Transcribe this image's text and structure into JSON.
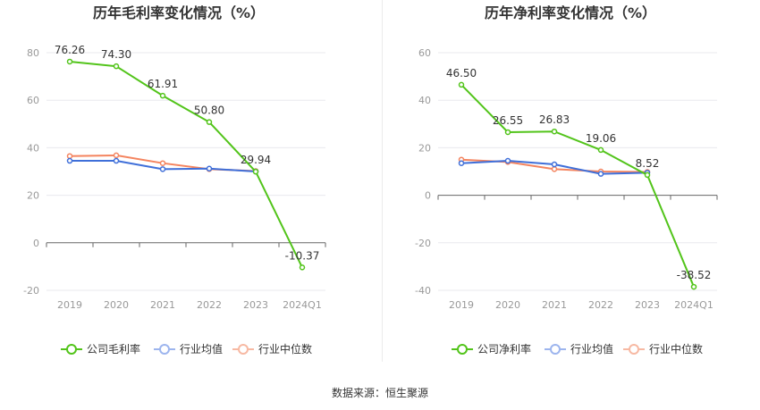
{
  "source_label": "数据来源：恒生聚源",
  "chart_data": [
    {
      "type": "line",
      "title": "历年毛利率变化情况（%）",
      "categories": [
        "2019",
        "2020",
        "2021",
        "2022",
        "2023",
        "2024Q1"
      ],
      "ylim": [
        -20,
        80
      ],
      "yticks": [
        -20,
        0,
        20,
        40,
        60,
        80
      ],
      "grid": true,
      "legend_position": "bottom",
      "label_series": 0,
      "series": [
        {
          "name": "公司毛利率",
          "color": "#52c41a",
          "values": [
            76.26,
            74.3,
            61.91,
            50.8,
            29.94,
            -10.37
          ],
          "labels": [
            "76.26",
            "74.30",
            "61.91",
            "50.80",
            "29.94",
            "-10.37"
          ]
        },
        {
          "name": "行业均值",
          "color": "#3f6fd9",
          "values": [
            34.5,
            34.5,
            31.0,
            31.2,
            30.0,
            null
          ]
        },
        {
          "name": "行业中位数",
          "color": "#f4845f",
          "values": [
            36.5,
            36.8,
            33.5,
            31.0,
            30.2,
            null
          ]
        }
      ]
    },
    {
      "type": "line",
      "title": "历年净利率变化情况（%）",
      "categories": [
        "2019",
        "2020",
        "2021",
        "2022",
        "2023",
        "2024Q1"
      ],
      "ylim": [
        -40,
        60
      ],
      "yticks": [
        -40,
        -20,
        0,
        20,
        40,
        60
      ],
      "grid": true,
      "legend_position": "bottom",
      "label_series": 0,
      "series": [
        {
          "name": "公司净利率",
          "color": "#52c41a",
          "values": [
            46.5,
            26.55,
            26.83,
            19.06,
            8.52,
            -38.52
          ],
          "labels": [
            "46.50",
            "26.55",
            "26.83",
            "19.06",
            "8.52",
            "-38.52"
          ]
        },
        {
          "name": "行业均值",
          "color": "#3f6fd9",
          "values": [
            13.5,
            14.5,
            13.0,
            9.0,
            9.5,
            null
          ]
        },
        {
          "name": "行业中位数",
          "color": "#f4845f",
          "values": [
            15.0,
            14.0,
            11.0,
            10.0,
            9.8,
            null
          ]
        }
      ]
    }
  ]
}
